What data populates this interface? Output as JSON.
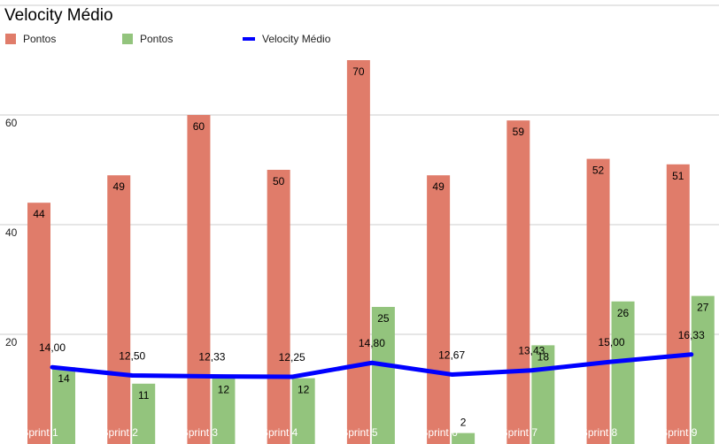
{
  "chart_data": {
    "type": "bar",
    "title": "Velocity Médio",
    "categories": [
      "Sprint 1",
      "Sprint 2",
      "Sprint 3",
      "Sprint 4",
      "Sprint 5",
      "Sprint 6",
      "Sprint 7",
      "Sprint 8",
      "Sprint 9"
    ],
    "series": [
      {
        "name": "Pontos",
        "kind": "bar",
        "color": "#e07c6a",
        "values": [
          44,
          49,
          60,
          50,
          70,
          49,
          59,
          52,
          51
        ]
      },
      {
        "name": "Pontos",
        "kind": "bar",
        "color": "#93c47d",
        "values": [
          14,
          11,
          12,
          12,
          25,
          2,
          18,
          26,
          27
        ]
      },
      {
        "name": "Velocity Médio",
        "kind": "line",
        "color": "#0000ff",
        "values": [
          14.0,
          12.5,
          12.33,
          12.25,
          14.8,
          12.67,
          13.43,
          15.0,
          16.33
        ],
        "labels": [
          "14,00",
          "12,50",
          "12,33",
          "12,25",
          "14,80",
          "12,67",
          "13,43",
          "15,00",
          "16,33"
        ]
      }
    ],
    "yticks": [
      20,
      40,
      60
    ],
    "ylim": [
      0,
      80
    ],
    "grid": true,
    "legend": "top-left"
  }
}
